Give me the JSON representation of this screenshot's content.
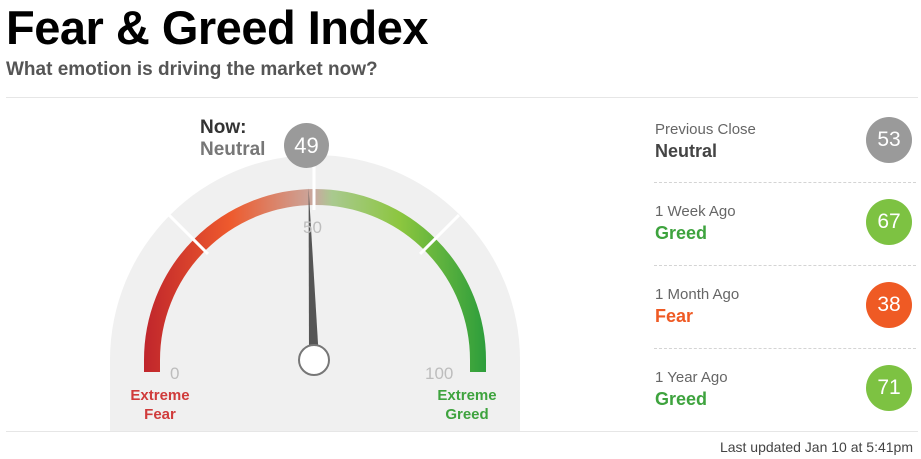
{
  "header": {
    "title": "Fear & Greed Index",
    "subtitle": "What emotion is driving the market now?"
  },
  "gauge": {
    "value": 49,
    "now_label": "Now:",
    "now_rating": "Neutral",
    "tick_0": "0",
    "tick_50": "50",
    "tick_100": "100",
    "left_end": [
      "Extreme",
      "Fear"
    ],
    "right_end": [
      "Extreme",
      "Greed"
    ],
    "colors": {
      "extreme_fear": "#c0262c",
      "fear": "#ee5a2d",
      "neutral": "#a8a8a8",
      "greed": "#8cc63f",
      "extreme_greed": "#2e9e3c"
    }
  },
  "history": [
    {
      "label": "Previous Close",
      "rating": "Neutral",
      "value": "53",
      "rating_color": "#444444",
      "circle_color": "#9a9a9a"
    },
    {
      "label": "1 Week Ago",
      "rating": "Greed",
      "value": "67",
      "rating_color": "#3ea33e",
      "circle_color": "#7dc242"
    },
    {
      "label": "1 Month Ago",
      "rating": "Fear",
      "value": "38",
      "rating_color": "#ef5a24",
      "circle_color": "#ef5a24"
    },
    {
      "label": "1 Year Ago",
      "rating": "Greed",
      "value": "71",
      "rating_color": "#3ea33e",
      "circle_color": "#7dc242"
    }
  ],
  "footer": {
    "last_updated": "Last updated Jan 10 at 5:41pm"
  }
}
